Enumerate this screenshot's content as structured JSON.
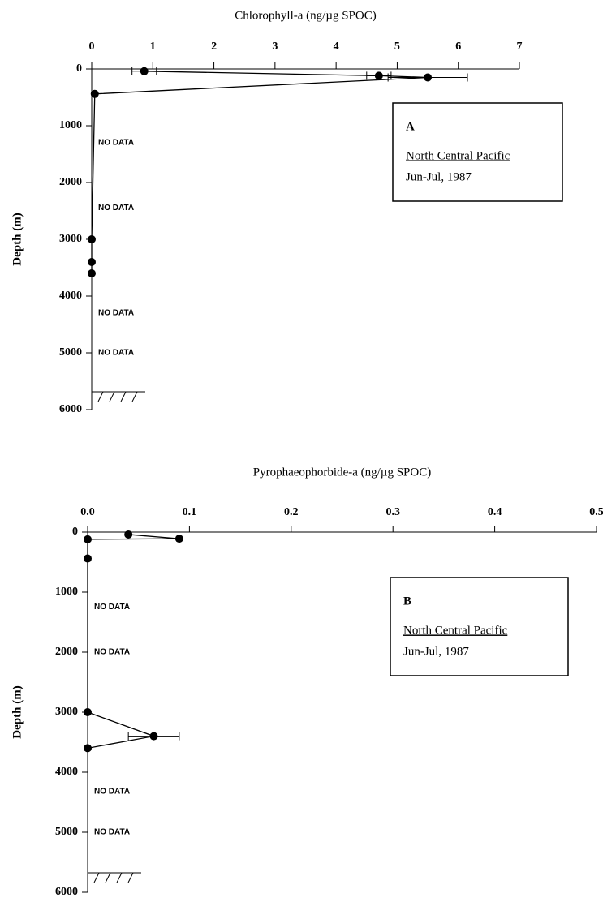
{
  "chart_data": [
    {
      "type": "line",
      "xlabel": "Chlorophyll-a (ng/µg SPOC)",
      "ylabel": "Depth (m)",
      "xlim": [
        0,
        7
      ],
      "xticks": [
        0,
        1,
        2,
        3,
        4,
        5,
        6,
        7
      ],
      "ylim": [
        0,
        6000
      ],
      "yticks": [
        0,
        1000,
        2000,
        3000,
        4000,
        5000,
        6000
      ],
      "x": [
        0.86,
        4.7,
        5.5,
        0.05,
        0.0,
        0.0,
        0.0
      ],
      "y": [
        40,
        120,
        150,
        440,
        3000,
        3400,
        3600
      ],
      "xerr": [
        0.2,
        0.2,
        0.65,
        null,
        null,
        null,
        null
      ],
      "color": "#000000",
      "no_data": [
        "NO DATA",
        "NO DATA",
        "NO DATA",
        "NO DATA"
      ],
      "panel_label": "A",
      "location": "North Central Pacific",
      "period": "Jun-Jul, 1987"
    },
    {
      "type": "line",
      "xlabel": "Pyrophaeophorbide-a (ng/µg SPOC)",
      "ylabel": "Depth (m)",
      "xlim": [
        0,
        0.5
      ],
      "xticks": [
        {
          "value": 0,
          "label": "0.0"
        },
        0.1,
        0.2,
        0.3,
        0.4,
        0.5
      ],
      "ylim": [
        0,
        6000
      ],
      "yticks": [
        0,
        1000,
        2000,
        3000,
        4000,
        5000,
        6000
      ],
      "x": [
        0.04,
        0.09,
        0.0,
        0.0,
        0.0,
        0.065,
        0.0
      ],
      "y": [
        40,
        110,
        120,
        440,
        3000,
        3400,
        3600
      ],
      "xerr": [
        null,
        null,
        null,
        null,
        null,
        0.025,
        null
      ],
      "color": "#000000",
      "no_data": [
        "NO DATA",
        "NO DATA",
        "NO DATA",
        "NO DATA"
      ],
      "panel_label": "B",
      "location": "North Central Pacific",
      "period": "Jun-Jul, 1987"
    }
  ]
}
